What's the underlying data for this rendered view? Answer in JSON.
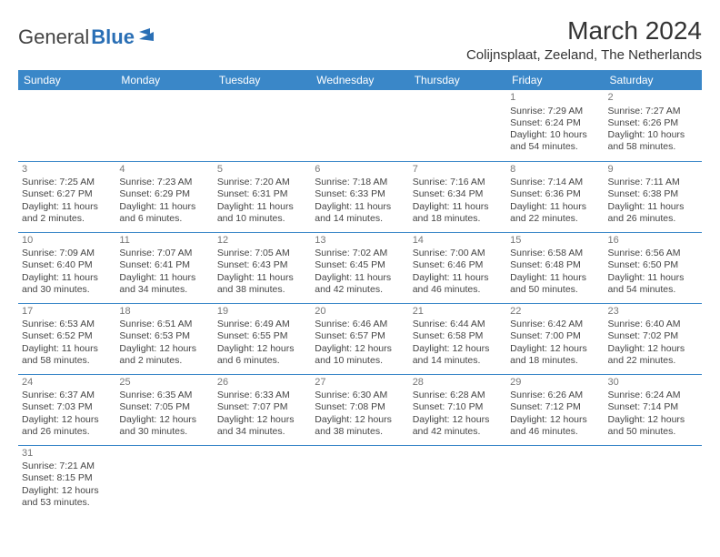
{
  "brand": {
    "general": "General",
    "blue": "Blue",
    "icon_color": "#2a6fb5"
  },
  "header": {
    "month_title": "March 2024",
    "location": "Colijnsplaat, Zeeland, The Netherlands"
  },
  "colors": {
    "header_bg": "#3a87c8",
    "header_fg": "#ffffff",
    "rule": "#3a87c8",
    "text": "#444444",
    "daynum": "#777777",
    "background": "#ffffff"
  },
  "day_names": [
    "Sunday",
    "Monday",
    "Tuesday",
    "Wednesday",
    "Thursday",
    "Friday",
    "Saturday"
  ],
  "weeks": [
    [
      null,
      null,
      null,
      null,
      null,
      {
        "n": "1",
        "sunrise": "Sunrise: 7:29 AM",
        "sunset": "Sunset: 6:24 PM",
        "daylight": "Daylight: 10 hours and 54 minutes."
      },
      {
        "n": "2",
        "sunrise": "Sunrise: 7:27 AM",
        "sunset": "Sunset: 6:26 PM",
        "daylight": "Daylight: 10 hours and 58 minutes."
      }
    ],
    [
      {
        "n": "3",
        "sunrise": "Sunrise: 7:25 AM",
        "sunset": "Sunset: 6:27 PM",
        "daylight": "Daylight: 11 hours and 2 minutes."
      },
      {
        "n": "4",
        "sunrise": "Sunrise: 7:23 AM",
        "sunset": "Sunset: 6:29 PM",
        "daylight": "Daylight: 11 hours and 6 minutes."
      },
      {
        "n": "5",
        "sunrise": "Sunrise: 7:20 AM",
        "sunset": "Sunset: 6:31 PM",
        "daylight": "Daylight: 11 hours and 10 minutes."
      },
      {
        "n": "6",
        "sunrise": "Sunrise: 7:18 AM",
        "sunset": "Sunset: 6:33 PM",
        "daylight": "Daylight: 11 hours and 14 minutes."
      },
      {
        "n": "7",
        "sunrise": "Sunrise: 7:16 AM",
        "sunset": "Sunset: 6:34 PM",
        "daylight": "Daylight: 11 hours and 18 minutes."
      },
      {
        "n": "8",
        "sunrise": "Sunrise: 7:14 AM",
        "sunset": "Sunset: 6:36 PM",
        "daylight": "Daylight: 11 hours and 22 minutes."
      },
      {
        "n": "9",
        "sunrise": "Sunrise: 7:11 AM",
        "sunset": "Sunset: 6:38 PM",
        "daylight": "Daylight: 11 hours and 26 minutes."
      }
    ],
    [
      {
        "n": "10",
        "sunrise": "Sunrise: 7:09 AM",
        "sunset": "Sunset: 6:40 PM",
        "daylight": "Daylight: 11 hours and 30 minutes."
      },
      {
        "n": "11",
        "sunrise": "Sunrise: 7:07 AM",
        "sunset": "Sunset: 6:41 PM",
        "daylight": "Daylight: 11 hours and 34 minutes."
      },
      {
        "n": "12",
        "sunrise": "Sunrise: 7:05 AM",
        "sunset": "Sunset: 6:43 PM",
        "daylight": "Daylight: 11 hours and 38 minutes."
      },
      {
        "n": "13",
        "sunrise": "Sunrise: 7:02 AM",
        "sunset": "Sunset: 6:45 PM",
        "daylight": "Daylight: 11 hours and 42 minutes."
      },
      {
        "n": "14",
        "sunrise": "Sunrise: 7:00 AM",
        "sunset": "Sunset: 6:46 PM",
        "daylight": "Daylight: 11 hours and 46 minutes."
      },
      {
        "n": "15",
        "sunrise": "Sunrise: 6:58 AM",
        "sunset": "Sunset: 6:48 PM",
        "daylight": "Daylight: 11 hours and 50 minutes."
      },
      {
        "n": "16",
        "sunrise": "Sunrise: 6:56 AM",
        "sunset": "Sunset: 6:50 PM",
        "daylight": "Daylight: 11 hours and 54 minutes."
      }
    ],
    [
      {
        "n": "17",
        "sunrise": "Sunrise: 6:53 AM",
        "sunset": "Sunset: 6:52 PM",
        "daylight": "Daylight: 11 hours and 58 minutes."
      },
      {
        "n": "18",
        "sunrise": "Sunrise: 6:51 AM",
        "sunset": "Sunset: 6:53 PM",
        "daylight": "Daylight: 12 hours and 2 minutes."
      },
      {
        "n": "19",
        "sunrise": "Sunrise: 6:49 AM",
        "sunset": "Sunset: 6:55 PM",
        "daylight": "Daylight: 12 hours and 6 minutes."
      },
      {
        "n": "20",
        "sunrise": "Sunrise: 6:46 AM",
        "sunset": "Sunset: 6:57 PM",
        "daylight": "Daylight: 12 hours and 10 minutes."
      },
      {
        "n": "21",
        "sunrise": "Sunrise: 6:44 AM",
        "sunset": "Sunset: 6:58 PM",
        "daylight": "Daylight: 12 hours and 14 minutes."
      },
      {
        "n": "22",
        "sunrise": "Sunrise: 6:42 AM",
        "sunset": "Sunset: 7:00 PM",
        "daylight": "Daylight: 12 hours and 18 minutes."
      },
      {
        "n": "23",
        "sunrise": "Sunrise: 6:40 AM",
        "sunset": "Sunset: 7:02 PM",
        "daylight": "Daylight: 12 hours and 22 minutes."
      }
    ],
    [
      {
        "n": "24",
        "sunrise": "Sunrise: 6:37 AM",
        "sunset": "Sunset: 7:03 PM",
        "daylight": "Daylight: 12 hours and 26 minutes."
      },
      {
        "n": "25",
        "sunrise": "Sunrise: 6:35 AM",
        "sunset": "Sunset: 7:05 PM",
        "daylight": "Daylight: 12 hours and 30 minutes."
      },
      {
        "n": "26",
        "sunrise": "Sunrise: 6:33 AM",
        "sunset": "Sunset: 7:07 PM",
        "daylight": "Daylight: 12 hours and 34 minutes."
      },
      {
        "n": "27",
        "sunrise": "Sunrise: 6:30 AM",
        "sunset": "Sunset: 7:08 PM",
        "daylight": "Daylight: 12 hours and 38 minutes."
      },
      {
        "n": "28",
        "sunrise": "Sunrise: 6:28 AM",
        "sunset": "Sunset: 7:10 PM",
        "daylight": "Daylight: 12 hours and 42 minutes."
      },
      {
        "n": "29",
        "sunrise": "Sunrise: 6:26 AM",
        "sunset": "Sunset: 7:12 PM",
        "daylight": "Daylight: 12 hours and 46 minutes."
      },
      {
        "n": "30",
        "sunrise": "Sunrise: 6:24 AM",
        "sunset": "Sunset: 7:14 PM",
        "daylight": "Daylight: 12 hours and 50 minutes."
      }
    ],
    [
      {
        "n": "31",
        "sunrise": "Sunrise: 7:21 AM",
        "sunset": "Sunset: 8:15 PM",
        "daylight": "Daylight: 12 hours and 53 minutes."
      },
      null,
      null,
      null,
      null,
      null,
      null
    ]
  ]
}
